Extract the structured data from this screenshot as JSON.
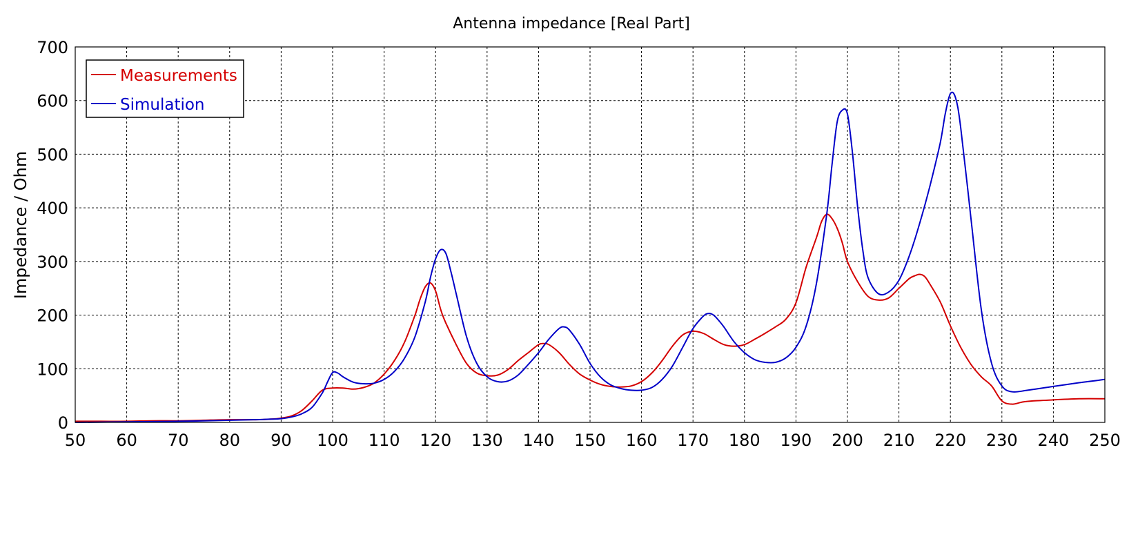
{
  "chart_data": {
    "type": "line",
    "title": "Antenna impedance [Real Part]",
    "xlabel": "",
    "ylabel": "Impedance / Ohm",
    "xlim": [
      50,
      250
    ],
    "ylim": [
      0,
      700
    ],
    "xticks": [
      50,
      60,
      70,
      80,
      90,
      100,
      110,
      120,
      130,
      140,
      150,
      160,
      170,
      180,
      190,
      200,
      210,
      220,
      230,
      240,
      250
    ],
    "yticks": [
      0,
      100,
      200,
      300,
      400,
      500,
      600,
      700
    ],
    "grid": true,
    "legend_position": "top-left",
    "series": [
      {
        "name": "Measurements",
        "color": "#d40000",
        "x": [
          50,
          55,
          60,
          65,
          70,
          75,
          80,
          85,
          88,
          90,
          92,
          94,
          96,
          98,
          100,
          102,
          104,
          106,
          108,
          110,
          112,
          114,
          116,
          117,
          118,
          119,
          120,
          121,
          122,
          124,
          126,
          128,
          130,
          132,
          134,
          136,
          138,
          140,
          141,
          142,
          144,
          146,
          148,
          150,
          152,
          154,
          156,
          158,
          160,
          162,
          164,
          166,
          168,
          170,
          172,
          174,
          176,
          178,
          180,
          182,
          184,
          186,
          188,
          190,
          192,
          194,
          195,
          196,
          197,
          198,
          199,
          200,
          202,
          204,
          206,
          208,
          210,
          212,
          213,
          214,
          215,
          216,
          218,
          220,
          222,
          224,
          226,
          228,
          230,
          232,
          234,
          236,
          240,
          245,
          250
        ],
        "values": [
          2,
          2,
          2,
          3,
          3,
          4,
          5,
          5,
          6,
          8,
          12,
          22,
          40,
          60,
          64,
          64,
          62,
          65,
          73,
          90,
          115,
          150,
          200,
          230,
          253,
          260,
          245,
          210,
          185,
          145,
          110,
          92,
          87,
          88,
          98,
          115,
          130,
          145,
          147,
          145,
          130,
          108,
          90,
          79,
          71,
          67,
          66,
          68,
          76,
          92,
          115,
          142,
          163,
          170,
          166,
          155,
          145,
          142,
          145,
          155,
          166,
          178,
          192,
          223,
          290,
          345,
          375,
          388,
          380,
          362,
          335,
          300,
          262,
          235,
          228,
          232,
          250,
          268,
          273,
          276,
          272,
          258,
          225,
          180,
          140,
          108,
          85,
          68,
          40,
          34,
          38,
          40,
          42,
          44,
          44
        ]
      },
      {
        "name": "Simulation",
        "color": "#0000c8",
        "x": [
          50,
          60,
          70,
          80,
          85,
          88,
          90,
          92,
          94,
          96,
          98,
          99,
          100,
          101,
          102,
          104,
          106,
          108,
          110,
          112,
          114,
          116,
          118,
          119,
          120,
          121,
          122,
          123,
          124,
          126,
          128,
          130,
          132,
          134,
          136,
          138,
          140,
          142,
          144,
          145,
          146,
          148,
          150,
          152,
          154,
          156,
          158,
          160,
          162,
          164,
          166,
          168,
          170,
          172,
          173,
          174,
          175,
          176,
          178,
          180,
          182,
          184,
          186,
          188,
          190,
          192,
          194,
          196,
          197,
          198,
          199,
          200,
          201,
          202,
          203,
          204,
          206,
          208,
          210,
          212,
          214,
          216,
          218,
          219,
          220,
          221,
          222,
          224,
          226,
          228,
          230,
          232,
          235,
          240,
          245,
          250
        ],
        "values": [
          0,
          1,
          2,
          4,
          5,
          6,
          7,
          10,
          16,
          28,
          55,
          75,
          93,
          92,
          85,
          75,
          72,
          73,
          80,
          95,
          120,
          160,
          225,
          270,
          305,
          322,
          315,
          280,
          240,
          160,
          110,
          85,
          76,
          77,
          88,
          108,
          130,
          155,
          175,
          178,
          172,
          145,
          110,
          85,
          70,
          63,
          60,
          60,
          65,
          80,
          105,
          140,
          175,
          198,
          203,
          200,
          190,
          178,
          150,
          130,
          117,
          112,
          112,
          120,
          140,
          180,
          260,
          390,
          480,
          560,
          582,
          575,
          500,
          400,
          320,
          270,
          240,
          243,
          265,
          310,
          370,
          440,
          520,
          575,
          613,
          605,
          550,
          380,
          210,
          110,
          68,
          57,
          60,
          67,
          74,
          80
        ]
      }
    ]
  }
}
